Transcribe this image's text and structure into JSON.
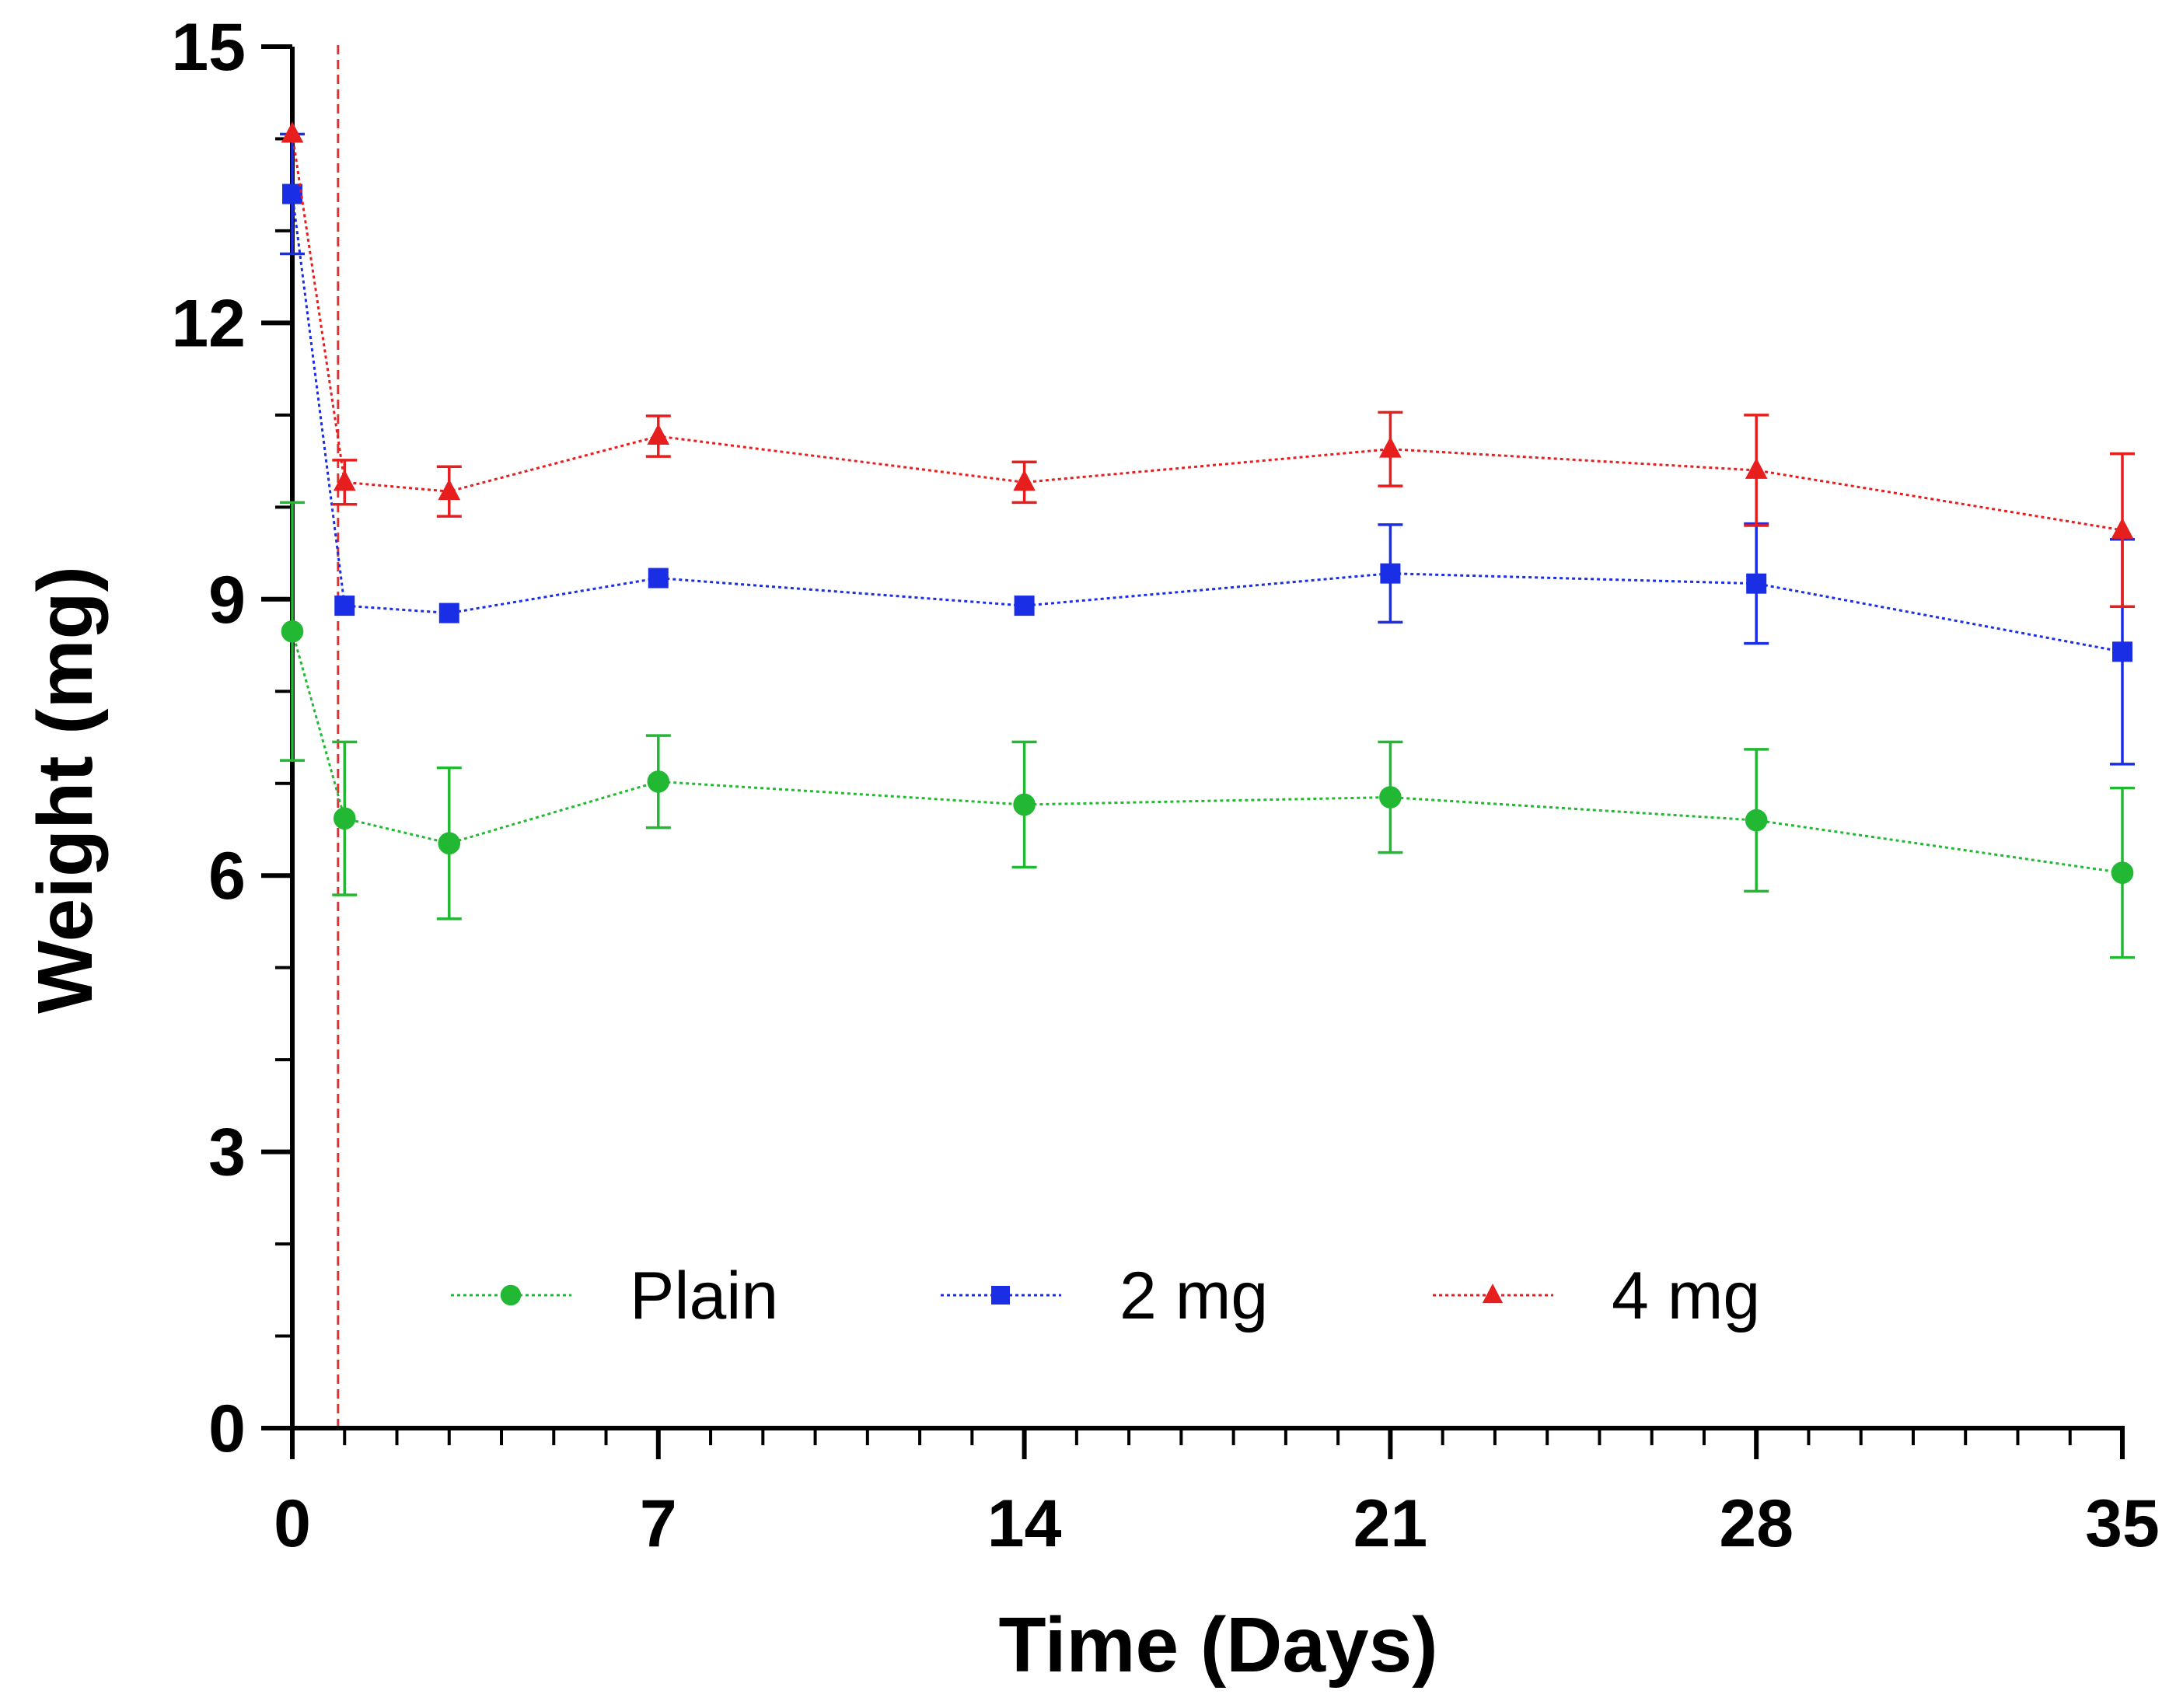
{
  "chart_data": {
    "type": "line",
    "xlabel": "Time (Days)",
    "ylabel": "Weight (mg)",
    "xlim": [
      0,
      35
    ],
    "ylim": [
      0,
      15
    ],
    "x_ticks": [
      0,
      7,
      14,
      21,
      28,
      35
    ],
    "y_ticks": [
      0,
      3,
      6,
      9,
      12,
      15
    ],
    "x_minor_step": 1,
    "y_minor_step": 1,
    "grid": false,
    "legend_position": "bottom-center",
    "reference_line": {
      "x": 0.875,
      "style": "dashed",
      "color": "#e03030"
    },
    "x": [
      0,
      1,
      3,
      7,
      14,
      21,
      28,
      35
    ],
    "series": [
      {
        "name": "Plain",
        "color": "#22b833",
        "marker": "circle",
        "values": [
          8.65,
          6.62,
          6.35,
          7.02,
          6.77,
          6.85,
          6.6,
          6.03
        ],
        "errors": [
          1.4,
          0.83,
          0.82,
          0.5,
          0.68,
          0.6,
          0.77,
          0.92
        ]
      },
      {
        "name": "2 mg",
        "color": "#1a2ee6",
        "marker": "square",
        "values": [
          13.4,
          8.93,
          8.85,
          9.23,
          8.93,
          9.28,
          9.17,
          8.43
        ],
        "errors": [
          0.65,
          0.0,
          0.0,
          0.0,
          0.0,
          0.53,
          0.65,
          1.22
        ]
      },
      {
        "name": "4 mg",
        "color": "#e61e1e",
        "marker": "triangle",
        "values": [
          14.05,
          10.27,
          10.17,
          10.77,
          10.27,
          10.63,
          10.4,
          9.75
        ],
        "errors": [
          0.0,
          0.24,
          0.27,
          0.22,
          0.22,
          0.4,
          0.6,
          0.83
        ]
      }
    ]
  }
}
